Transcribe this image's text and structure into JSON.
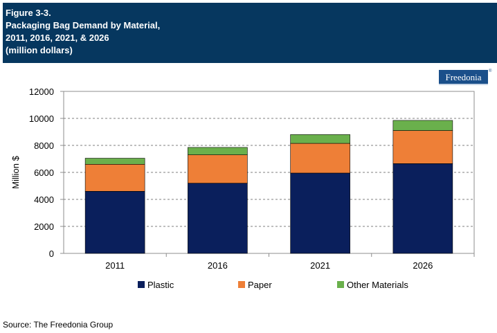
{
  "header": {
    "line1": "Figure 3-3.",
    "line2": "Packaging Bag Demand by Material,",
    "line3": "2011, 2016, 2021, & 2026",
    "line4": "(million dollars)"
  },
  "logo": {
    "text": "Freedonia",
    "mark": "®"
  },
  "source": "Source: The Freedonia Group",
  "colors": {
    "header_bg": "#06375f",
    "plastic": "#0a1f5c",
    "paper": "#ee7f37",
    "other": "#6ab04c"
  },
  "chart_data": {
    "type": "bar",
    "stacked": true,
    "categories": [
      "2011",
      "2016",
      "2021",
      "2026"
    ],
    "series": [
      {
        "name": "Plastic",
        "values": [
          4600,
          5200,
          5950,
          6650
        ],
        "color": "#0a1f5c"
      },
      {
        "name": "Paper",
        "values": [
          2000,
          2100,
          2200,
          2450
        ],
        "color": "#ee7f37"
      },
      {
        "name": "Other Materials",
        "values": [
          450,
          550,
          650,
          750
        ],
        "color": "#6ab04c"
      }
    ],
    "ylabel": "Million $",
    "ylim": [
      0,
      12000
    ],
    "yticks": [
      0,
      2000,
      4000,
      6000,
      8000,
      10000,
      12000
    ],
    "grid": "horizontal dashed",
    "legend": "bottom"
  }
}
